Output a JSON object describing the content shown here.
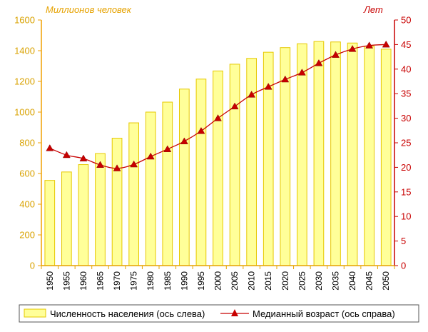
{
  "chart_data": {
    "type": "bar",
    "categories": [
      "1950",
      "1955",
      "1960",
      "1965",
      "1970",
      "1975",
      "1980",
      "1985",
      "1990",
      "1995",
      "2000",
      "2005",
      "2010",
      "2015",
      "2020",
      "2025",
      "2030",
      "2035",
      "2040",
      "2045",
      "2050"
    ],
    "series": [
      {
        "name": "Численность населения (ось слева)",
        "axis": "left",
        "type": "bar",
        "values": [
          555,
          610,
          658,
          730,
          830,
          930,
          1000,
          1065,
          1150,
          1215,
          1268,
          1312,
          1350,
          1390,
          1420,
          1445,
          1460,
          1457,
          1450,
          1430,
          1410
        ]
      },
      {
        "name": "Медианный возраст (ось справа)",
        "axis": "right",
        "type": "line",
        "values": [
          23.9,
          22.5,
          21.8,
          20.5,
          19.8,
          20.6,
          22.2,
          23.7,
          25.3,
          27.4,
          30.0,
          32.4,
          34.8,
          36.4,
          37.9,
          39.3,
          41.2,
          42.9,
          44.1,
          44.8,
          45.0
        ]
      }
    ],
    "left_axis": {
      "title": "Миллионов человек",
      "ylim": [
        0,
        1600
      ],
      "ticks": [
        "0",
        "200",
        "400",
        "600",
        "800",
        "1000",
        "1200",
        "1400",
        "1600"
      ]
    },
    "right_axis": {
      "title": "Лет",
      "ylim": [
        0,
        50
      ],
      "ticks": [
        "0",
        "5",
        "10",
        "15",
        "20",
        "25",
        "30",
        "35",
        "40",
        "45",
        "50"
      ]
    },
    "legend": {
      "placement": "bottom",
      "items": [
        "Численность населения (ось слева)",
        "Медианный возраст (ось справа)"
      ]
    },
    "colors": {
      "bar_fill": "#ffff99",
      "bar_stroke": "#e6c800",
      "line": "#c80000",
      "marker": "#c80000",
      "left_axis": "#f0a000",
      "right_axis": "#c80000",
      "plot_bg": "#ffffff"
    }
  }
}
